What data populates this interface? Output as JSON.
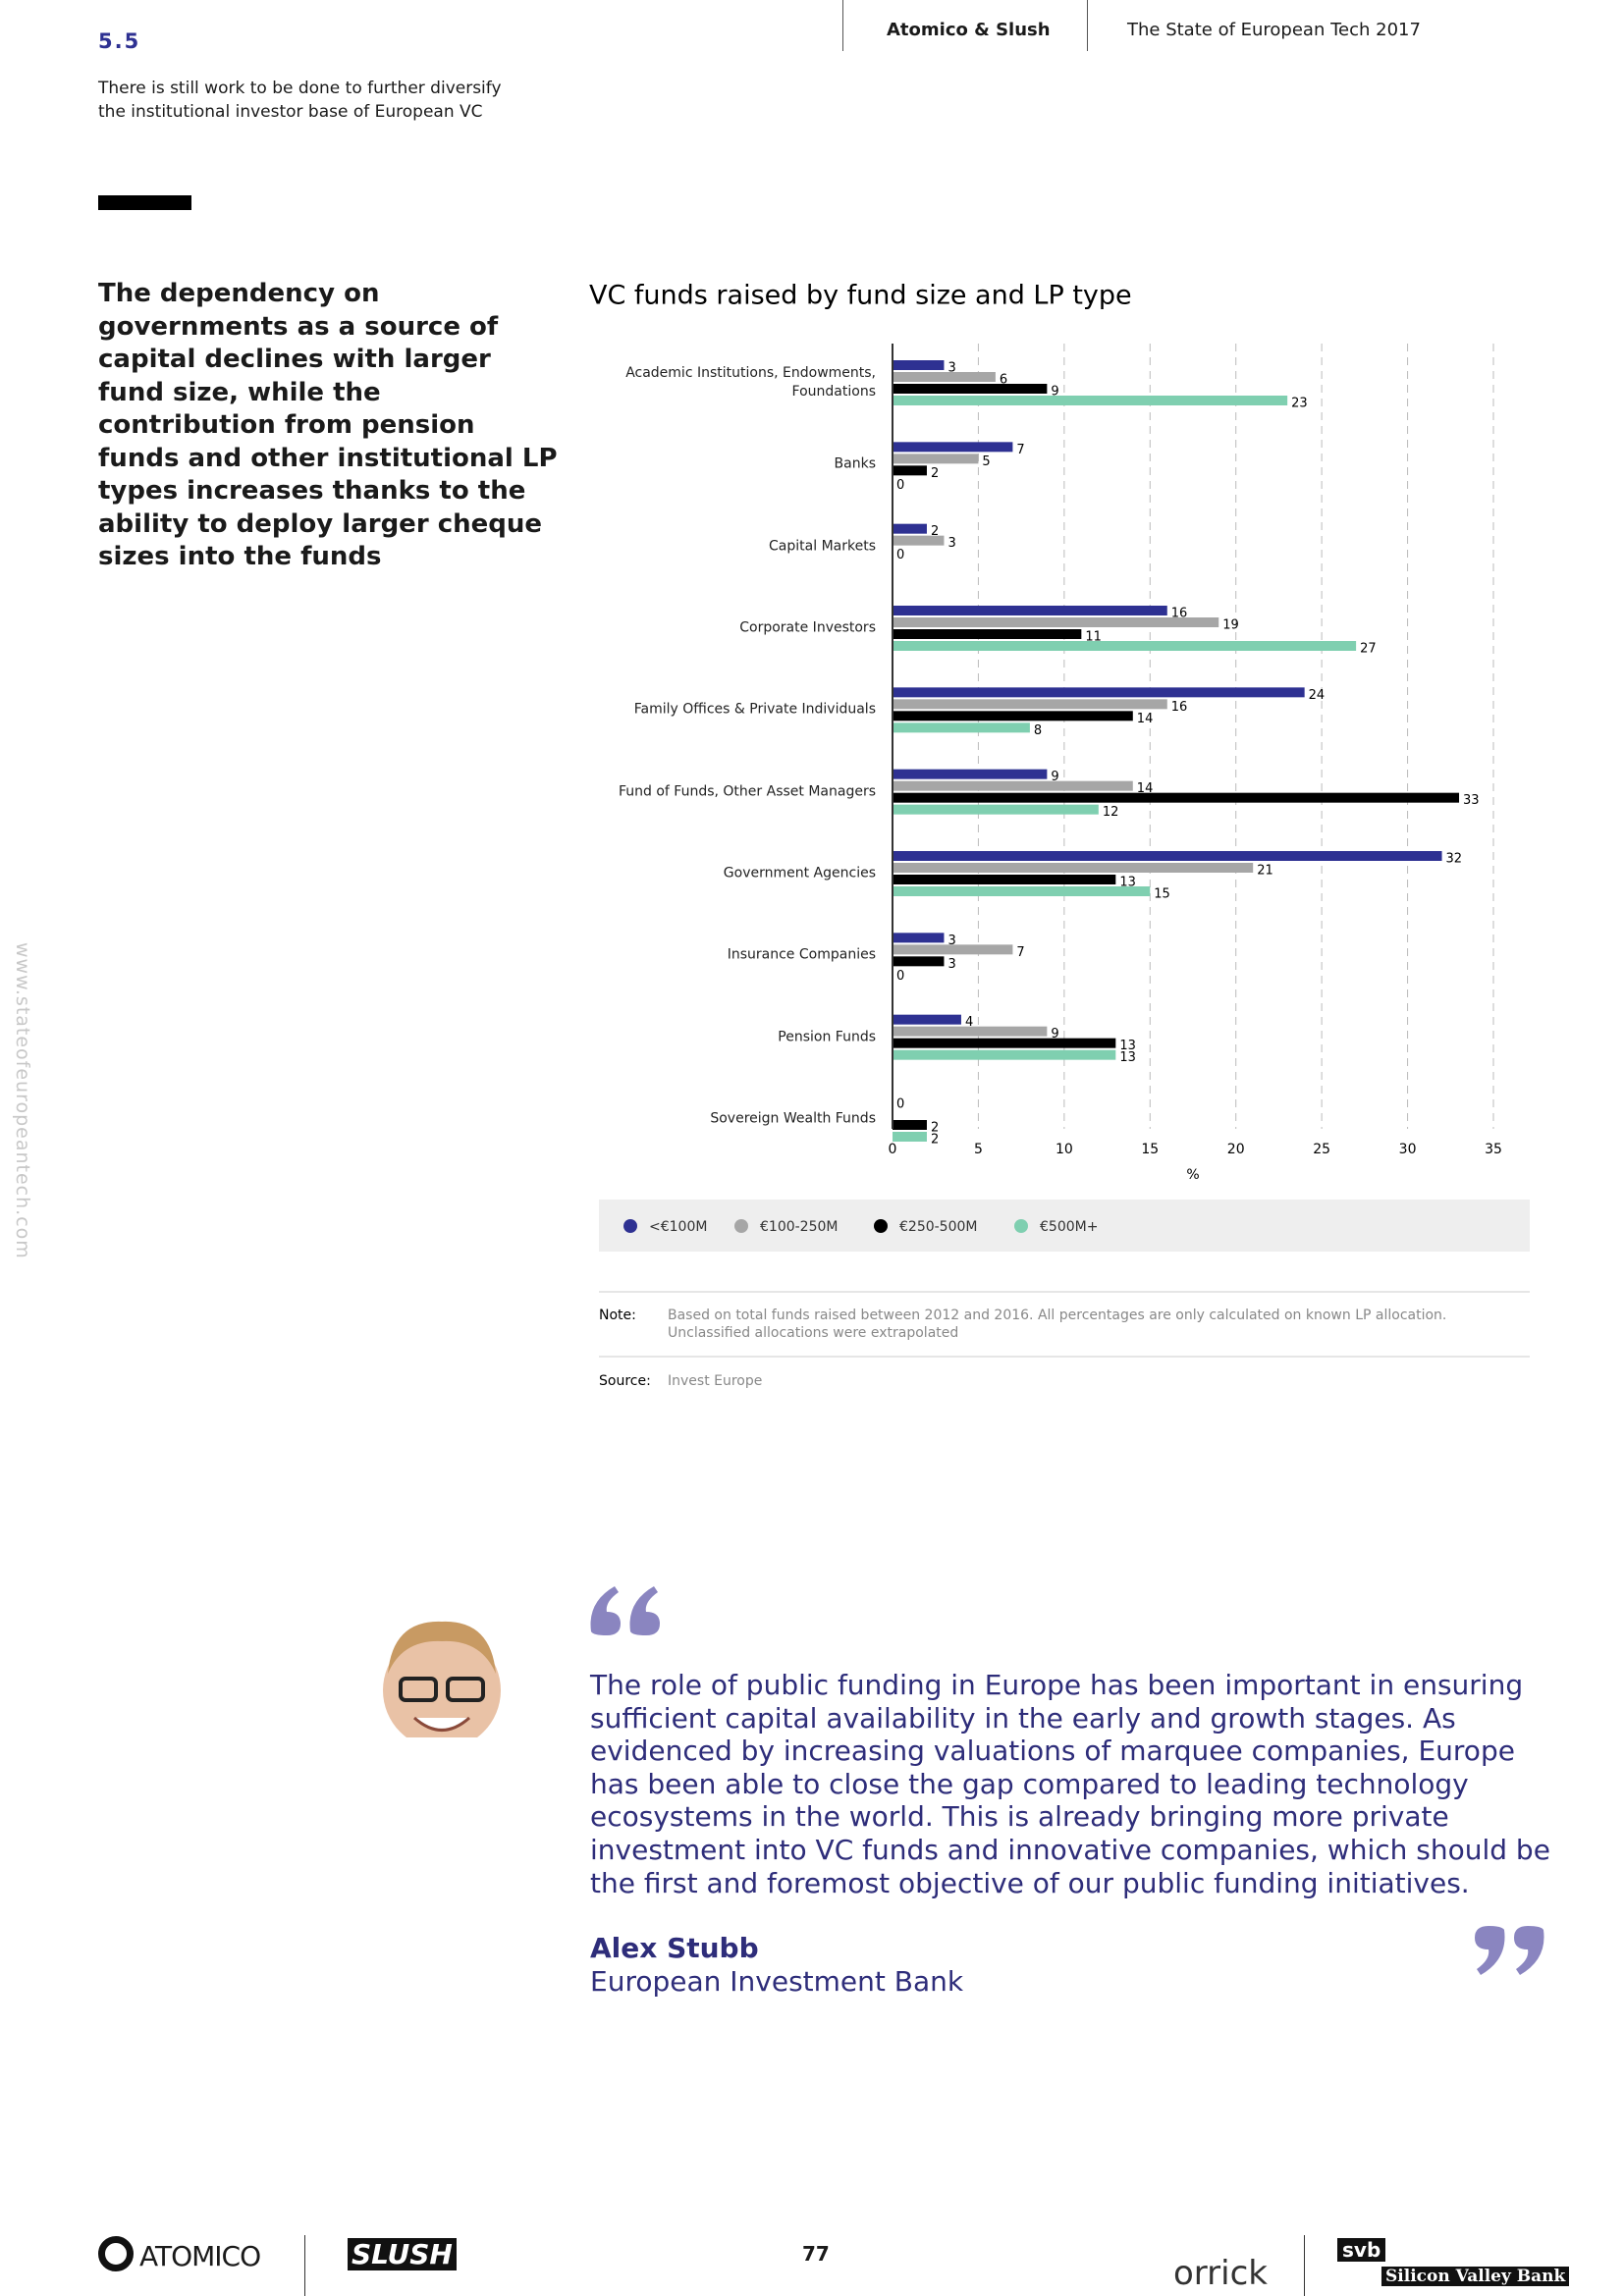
{
  "header": {
    "section": "5.5",
    "subtitle": "There is still work to be done to further diversify the institutional investor base of European VC",
    "brand": "Atomico & Slush",
    "report": "The State of European Tech 2017"
  },
  "side_url": "www.stateofeuropeantech.com",
  "lead": "The dependency on governments as a source of capital declines with larger fund size, while the contribution from pension funds and other institutional LP types increases thanks to the ability to deploy larger cheque sizes into the funds",
  "chart_data": {
    "type": "hbar",
    "title": "VC funds raised by fund size and LP type",
    "categories": [
      "Academic Institutions, Endowments, Foundations",
      "Banks",
      "Capital Markets",
      "Corporate Investors",
      "Family Offices & Private Individuals",
      "Fund of Funds, Other Asset Managers",
      "Government Agencies",
      "Insurance Companies",
      "Pension Funds",
      "Sovereign Wealth Funds"
    ],
    "series": [
      {
        "name": "<€100M",
        "color": "#2e3192",
        "values": [
          3,
          7,
          2,
          16,
          24,
          9,
          32,
          3,
          4,
          0
        ]
      },
      {
        "name": "€100-250M",
        "color": "#a6a6a6",
        "values": [
          6,
          5,
          3,
          19,
          16,
          14,
          21,
          7,
          9,
          null
        ]
      },
      {
        "name": "€250-500M",
        "color": "#000000",
        "values": [
          9,
          2,
          0,
          11,
          14,
          33,
          13,
          3,
          13,
          2
        ]
      },
      {
        "name": "€500M+",
        "color": "#7fcfb0",
        "values": [
          23,
          0,
          null,
          27,
          8,
          12,
          15,
          0,
          13,
          2
        ]
      }
    ],
    "xlabel": "%",
    "xlim": [
      0,
      35
    ],
    "xticks": [
      0,
      5,
      10,
      15,
      20,
      25,
      30,
      35
    ],
    "grid": true,
    "note_label": "Note:",
    "note": "Based on total funds raised between 2012 and 2016. All percentages are only calculated on known LP allocation. Unclassified allocations were extrapolated",
    "source_label": "Source:",
    "source": "Invest Europe"
  },
  "quote": {
    "text": "The role of public funding in Europe has been important in ensuring sufficient capital availability in the early and growth stages. As evidenced by increasing valuations of marquee companies, Europe has been able to close the gap compared to leading technology ecosystems in the world. This is already bringing more private investment into VC funds and innovative companies, which should be the first and foremost objective of our public funding initiatives.",
    "name": "Alex Stubb",
    "org": "European Investment Bank"
  },
  "footer": {
    "logo1": "ATOMICO",
    "logo2": "SLUSH",
    "page": "77",
    "logo3": "orrick",
    "logo4a": "svb",
    "logo4b": "Silicon Valley Bank"
  }
}
